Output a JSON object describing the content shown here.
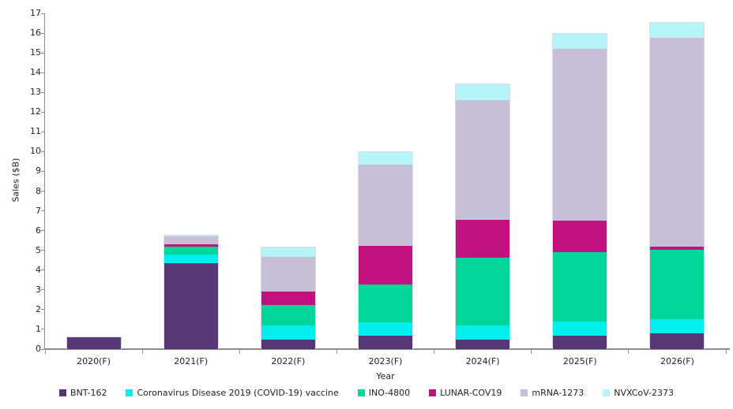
{
  "chart_data": {
    "type": "bar",
    "stacked": true,
    "title": "",
    "xlabel": "Year",
    "ylabel": "Sales ($B)",
    "ylim": [
      0,
      17
    ],
    "ytick_step": 1,
    "grid": false,
    "legend_position": "bottom",
    "categories": [
      "2020(F)",
      "2021(F)",
      "2022(F)",
      "2023(F)",
      "2024(F)",
      "2025(F)",
      "2026(F)"
    ],
    "series": [
      {
        "name": "BNT-162",
        "color": "#563874",
        "values": [
          0.65,
          4.4,
          0.5,
          0.7,
          0.5,
          0.7,
          0.8
        ]
      },
      {
        "name": "Coronavirus Disease 2019 (COVID-19) vaccine",
        "color": "#00EFEF",
        "values": [
          0,
          0.45,
          0.7,
          0.65,
          0.7,
          0.7,
          0.7
        ]
      },
      {
        "name": "INO-4800",
        "color": "#00D69A",
        "values": [
          0,
          0.4,
          1.05,
          1.95,
          3.45,
          3.5,
          3.55
        ]
      },
      {
        "name": "LUNAR-COV19",
        "color": "#C0127E",
        "values": [
          0,
          0.1,
          0.7,
          1.95,
          1.9,
          1.6,
          0.15
        ]
      },
      {
        "name": "mRNA-1273",
        "color": "#C7BFD6",
        "values": [
          0,
          0.4,
          1.75,
          4.1,
          6.1,
          8.75,
          10.6
        ]
      },
      {
        "name": "NVXCoV-2373",
        "color": "#B5F4F9",
        "values": [
          0,
          0.05,
          0.5,
          0.65,
          0.8,
          0.75,
          0.75
        ]
      }
    ],
    "totals": [
      0.65,
      5.8,
      5.2,
      10.0,
      13.45,
      16.0,
      16.55
    ]
  },
  "axis_colors": {
    "line": "#8c8c8c",
    "text": "#222222"
  }
}
